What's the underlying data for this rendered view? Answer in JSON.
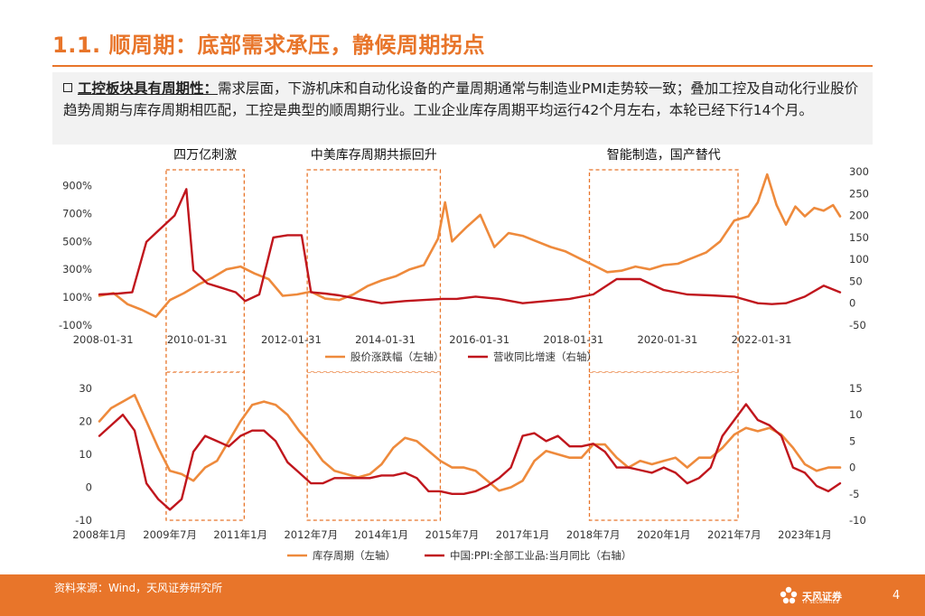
{
  "page": {
    "title": "1.1. 顺周期：底部需求承压，静候周期拐点",
    "summary_lead": "工控板块具有周期性：",
    "summary_text": "需求层面，下游机床和自动化设备的产量周期通常与制造业PMI走势较一致；叠加工控及自动化行业股价趋势周期与库存周期相匹配，工控是典型的顺周期行业。工业企业库存周期平均运行42个月左右，本轮已经下行14个月。",
    "source": "资料来源：Wind，天风证券研究所",
    "logo_text": "天风证券",
    "logo_sub": "TF SECURITIES",
    "page_number": "4"
  },
  "colors": {
    "accent": "#e8752a",
    "orange_series": "#ee8a3c",
    "red_series": "#c0161d",
    "summary_bg": "#f2f2f2"
  },
  "periods": [
    {
      "label": "四万亿刺激",
      "start": 2009.42,
      "end": 2011.08
    },
    {
      "label": "中美库存周期共振回升",
      "start": 2012.42,
      "end": 2015.25
    },
    {
      "label": "智能制造，国产替代",
      "start": 2018.42,
      "end": 2021.58
    }
  ],
  "chart_data": [
    {
      "type": "line",
      "title": "",
      "x_ticks": [
        "2008-01-31",
        "2010-01-31",
        "2012-01-31",
        "2014-01-31",
        "2016-01-31",
        "2018-01-31",
        "2020-01-31",
        "2022-01-31"
      ],
      "x_tick_values": [
        2008.08,
        2010.08,
        2012.08,
        2014.08,
        2016.08,
        2018.08,
        2020.08,
        2022.08
      ],
      "xlim": [
        2008.0,
        2023.75
      ],
      "y_left_ticks": [
        "-100%",
        "100%",
        "300%",
        "500%",
        "700%",
        "900%"
      ],
      "y_left_values": [
        -100,
        100,
        300,
        500,
        700,
        900
      ],
      "ylim_left": [
        -100,
        1000
      ],
      "y_right_ticks": [
        "-50",
        "0",
        "50",
        "100",
        "150",
        "200",
        "250",
        "300"
      ],
      "y_right_values": [
        -50,
        0,
        50,
        100,
        150,
        200,
        250,
        300
      ],
      "ylim_right": [
        -50,
        300
      ],
      "legend": [
        "股价涨跌幅（左轴）",
        "营收同比增速（右轴）"
      ],
      "series": [
        {
          "name": "股价涨跌幅（左轴）",
          "axis": "left",
          "color": "#ee8a3c",
          "x": [
            2008.0,
            2008.3,
            2008.6,
            2008.9,
            2009.2,
            2009.5,
            2009.8,
            2010.1,
            2010.4,
            2010.7,
            2011.0,
            2011.3,
            2011.6,
            2011.9,
            2012.2,
            2012.5,
            2012.8,
            2013.1,
            2013.4,
            2013.7,
            2014.0,
            2014.3,
            2014.6,
            2014.9,
            2015.2,
            2015.35,
            2015.5,
            2015.8,
            2016.1,
            2016.4,
            2016.7,
            2017.0,
            2017.3,
            2017.6,
            2017.9,
            2018.2,
            2018.5,
            2018.8,
            2019.1,
            2019.4,
            2019.7,
            2020.0,
            2020.3,
            2020.6,
            2020.9,
            2021.2,
            2021.5,
            2021.8,
            2022.0,
            2022.2,
            2022.4,
            2022.6,
            2022.8,
            2023.0,
            2023.2,
            2023.4,
            2023.6,
            2023.75
          ],
          "y": [
            110,
            130,
            50,
            10,
            -40,
            80,
            130,
            190,
            240,
            300,
            320,
            270,
            230,
            110,
            120,
            140,
            90,
            80,
            120,
            180,
            220,
            250,
            300,
            330,
            520,
            780,
            500,
            600,
            690,
            460,
            560,
            540,
            500,
            460,
            430,
            380,
            330,
            280,
            290,
            320,
            300,
            330,
            340,
            380,
            420,
            500,
            650,
            680,
            780,
            980,
            760,
            620,
            750,
            680,
            740,
            720,
            760,
            680
          ]
        },
        {
          "name": "营收同比增速（右轴）",
          "axis": "right",
          "color": "#c0161d",
          "x": [
            2008.0,
            2008.4,
            2008.7,
            2009.0,
            2009.3,
            2009.6,
            2009.85,
            2010.0,
            2010.3,
            2010.6,
            2010.9,
            2011.1,
            2011.4,
            2011.7,
            2012.0,
            2012.3,
            2012.5,
            2012.8,
            2013.1,
            2013.5,
            2014.0,
            2014.5,
            2015.0,
            2015.3,
            2015.6,
            2016.0,
            2016.5,
            2017.0,
            2017.5,
            2018.0,
            2018.5,
            2019.0,
            2019.5,
            2020.0,
            2020.5,
            2021.0,
            2021.5,
            2022.0,
            2022.3,
            2022.6,
            2023.0,
            2023.4,
            2023.75
          ],
          "y": [
            20,
            22,
            25,
            140,
            170,
            200,
            260,
            75,
            45,
            35,
            25,
            5,
            20,
            150,
            155,
            155,
            25,
            22,
            18,
            10,
            0,
            5,
            8,
            10,
            10,
            15,
            10,
            0,
            5,
            10,
            20,
            55,
            55,
            30,
            20,
            18,
            15,
            0,
            -2,
            0,
            15,
            40,
            25
          ]
        }
      ]
    },
    {
      "type": "line",
      "title": "",
      "x_ticks": [
        "2008年1月",
        "2009年7月",
        "2011年1月",
        "2012年7月",
        "2014年1月",
        "2015年7月",
        "2017年1月",
        "2018年7月",
        "2020年1月",
        "2021年7月",
        "2023年1月"
      ],
      "x_tick_values": [
        2008.0,
        2009.5,
        2011.0,
        2012.5,
        2014.0,
        2015.5,
        2017.0,
        2018.5,
        2020.0,
        2021.5,
        2023.0
      ],
      "xlim": [
        2008.0,
        2023.75
      ],
      "y_left_ticks": [
        "-10",
        "0",
        "10",
        "20",
        "30"
      ],
      "y_left_values": [
        -10,
        0,
        10,
        20,
        30
      ],
      "ylim_left": [
        -10,
        30
      ],
      "y_right_ticks": [
        "-10",
        "-5",
        "0",
        "5",
        "10",
        "15"
      ],
      "y_right_values": [
        -10,
        -5,
        0,
        5,
        10,
        15
      ],
      "ylim_right": [
        -10,
        15
      ],
      "legend": [
        "库存周期（左轴）",
        "中国:PPI:全部工业品:当月同比（右轴）"
      ],
      "series": [
        {
          "name": "库存周期（左轴）",
          "axis": "left",
          "color": "#ee8a3c",
          "x": [
            2008.0,
            2008.25,
            2008.5,
            2008.75,
            2009.0,
            2009.25,
            2009.5,
            2009.75,
            2010.0,
            2010.25,
            2010.5,
            2010.75,
            2011.0,
            2011.25,
            2011.5,
            2011.75,
            2012.0,
            2012.25,
            2012.5,
            2012.75,
            2013.0,
            2013.25,
            2013.5,
            2013.75,
            2014.0,
            2014.25,
            2014.5,
            2014.75,
            2015.0,
            2015.25,
            2015.5,
            2015.75,
            2016.0,
            2016.25,
            2016.5,
            2016.75,
            2017.0,
            2017.25,
            2017.5,
            2017.75,
            2018.0,
            2018.25,
            2018.5,
            2018.75,
            2019.0,
            2019.25,
            2019.5,
            2019.75,
            2020.0,
            2020.25,
            2020.5,
            2020.75,
            2021.0,
            2021.25,
            2021.5,
            2021.75,
            2022.0,
            2022.25,
            2022.5,
            2022.75,
            2023.0,
            2023.25,
            2023.5,
            2023.75
          ],
          "y": [
            20,
            24,
            26,
            28,
            20,
            12,
            5,
            4,
            2,
            6,
            8,
            14,
            20,
            25,
            26,
            25,
            22,
            17,
            13,
            8,
            5,
            4,
            3,
            4,
            7,
            12,
            15,
            14,
            11,
            8,
            6,
            6,
            5,
            2,
            -1,
            0,
            2,
            8,
            11,
            10,
            9,
            9,
            13,
            13,
            9,
            6,
            8,
            7,
            8,
            9,
            6,
            9,
            9,
            12,
            16,
            18,
            17,
            18,
            16,
            12,
            7,
            5,
            6,
            6
          ]
        },
        {
          "name": "中国:PPI:全部工业品:当月同比（右轴）",
          "axis": "right",
          "color": "#c0161d",
          "x": [
            2008.0,
            2008.25,
            2008.5,
            2008.75,
            2009.0,
            2009.25,
            2009.5,
            2009.75,
            2010.0,
            2010.25,
            2010.5,
            2010.75,
            2011.0,
            2011.25,
            2011.5,
            2011.75,
            2012.0,
            2012.25,
            2012.5,
            2012.75,
            2013.0,
            2013.25,
            2013.5,
            2013.75,
            2014.0,
            2014.25,
            2014.5,
            2014.75,
            2015.0,
            2015.25,
            2015.5,
            2015.75,
            2016.0,
            2016.25,
            2016.5,
            2016.75,
            2017.0,
            2017.25,
            2017.5,
            2017.75,
            2018.0,
            2018.25,
            2018.5,
            2018.75,
            2019.0,
            2019.25,
            2019.5,
            2019.75,
            2020.0,
            2020.25,
            2020.5,
            2020.75,
            2021.0,
            2021.25,
            2021.5,
            2021.75,
            2022.0,
            2022.25,
            2022.5,
            2022.75,
            2023.0,
            2023.25,
            2023.5,
            2023.75
          ],
          "y": [
            6,
            8,
            10,
            7,
            -3,
            -6,
            -8,
            -6,
            3,
            6,
            5,
            4,
            6,
            7,
            7,
            5,
            1,
            -1,
            -3,
            -3,
            -2,
            -2,
            -2,
            -2,
            -1.5,
            -1.5,
            -1,
            -2,
            -4.5,
            -4.5,
            -5,
            -5,
            -4.5,
            -3.5,
            -2,
            0,
            6,
            6.5,
            5,
            6,
            4,
            4,
            4.5,
            3,
            0,
            0,
            -0.5,
            -1,
            0,
            -1,
            -3,
            -2,
            0,
            6,
            9,
            12,
            9,
            8,
            6,
            0,
            -1,
            -3.5,
            -4.5,
            -3
          ]
        }
      ]
    }
  ]
}
